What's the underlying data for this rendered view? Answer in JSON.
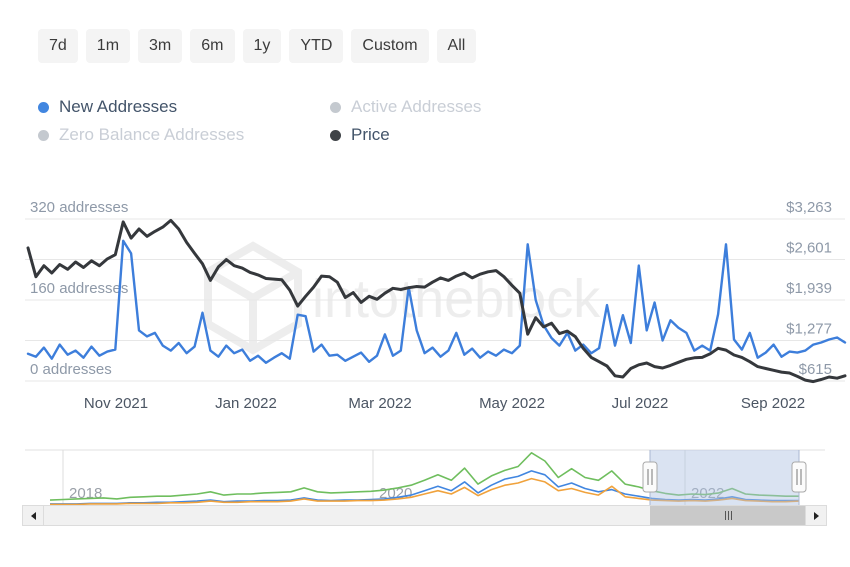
{
  "toolbar": {
    "ranges": [
      "7d",
      "1m",
      "3m",
      "6m",
      "1y",
      "YTD",
      "Custom",
      "All"
    ]
  },
  "legend": [
    {
      "label": "New Addresses",
      "color": "#4186e0",
      "active": true
    },
    {
      "label": "Active Addresses",
      "color": "#c4c9cf",
      "active": false
    },
    {
      "label": "Zero Balance Addresses",
      "color": "#c4c9cf",
      "active": false
    },
    {
      "label": "Price",
      "color": "#3f4347",
      "active": true
    }
  ],
  "watermark": {
    "text": "intotheblock",
    "color": "#ededed"
  },
  "colors": {
    "new_addresses": "#3d7edb",
    "price": "#35383c",
    "nav_green": "#6fbe5e",
    "nav_blue": "#4186e0",
    "nav_orange": "#f0a23c",
    "grid": "#e7e7e7",
    "axis_label": "#8e99a8",
    "x_label": "#4b5563",
    "selection_fill": "rgba(174,192,226,0.45)"
  },
  "chart_data": [
    {
      "name": "main",
      "type": "line",
      "x_start": "2021-09-21",
      "x_end": "2022-09-26",
      "x_ticks": [
        "Nov 2021",
        "Jan 2022",
        "Mar 2022",
        "May 2022",
        "Jul 2022",
        "Sep 2022"
      ],
      "left_axis": {
        "ticks": [
          "320 addresses",
          "160 addresses",
          "0 addresses"
        ],
        "range": [
          0,
          320
        ],
        "unit": "addresses"
      },
      "right_axis": {
        "ticks": [
          "$3,263",
          "$2,601",
          "$1,939",
          "$1,277",
          "$615"
        ],
        "range": [
          615,
          3263
        ],
        "unit": "USD"
      },
      "grid": true,
      "series": [
        {
          "name": "New Addresses",
          "axis": "left",
          "values": [
            54,
            48,
            66,
            44,
            72,
            52,
            60,
            46,
            68,
            50,
            58,
            62,
            277,
            252,
            100,
            88,
            95,
            70,
            60,
            75,
            55,
            68,
            135,
            60,
            48,
            70,
            55,
            62,
            40,
            50,
            36,
            46,
            55,
            44,
            131,
            128,
            58,
            72,
            50,
            52,
            40,
            48,
            56,
            38,
            50,
            92,
            50,
            60,
            185,
            100,
            55,
            66,
            48,
            60,
            95,
            52,
            64,
            46,
            58,
            50,
            62,
            55,
            70,
            270,
            160,
            110,
            85,
            70,
            95,
            60,
            72,
            55,
            65,
            150,
            70,
            130,
            75,
            228,
            100,
            155,
            80,
            120,
            105,
            95,
            60,
            70,
            60,
            132,
            270,
            82,
            62,
            95,
            46,
            56,
            72,
            48,
            58,
            56,
            60,
            72,
            76,
            82,
            86,
            76
          ]
        },
        {
          "name": "Price",
          "axis": "right",
          "values": [
            2790,
            2320,
            2500,
            2380,
            2520,
            2440,
            2560,
            2470,
            2580,
            2500,
            2610,
            2680,
            3215,
            2950,
            3100,
            2980,
            3060,
            3130,
            3240,
            3100,
            2880,
            2700,
            2530,
            2260,
            2480,
            2600,
            2500,
            2460,
            2390,
            2350,
            2290,
            2280,
            2270,
            2100,
            1840,
            2000,
            2150,
            2330,
            2320,
            2230,
            1980,
            2060,
            1900,
            2000,
            1950,
            2050,
            2130,
            2110,
            2140,
            2160,
            2150,
            2230,
            2300,
            2260,
            2330,
            2380,
            2300,
            2360,
            2400,
            2420,
            2320,
            2180,
            2050,
            1380,
            1650,
            1500,
            1560,
            1390,
            1430,
            1340,
            1150,
            1000,
            930,
            860,
            700,
            680,
            820,
            880,
            910,
            850,
            828,
            870,
            920,
            970,
            995,
            1000,
            1060,
            1150,
            1120,
            1040,
            1000,
            930,
            850,
            820,
            790,
            760,
            745,
            690,
            630,
            605,
            640,
            680,
            660,
            700
          ]
        }
      ]
    },
    {
      "name": "navigator",
      "type": "line",
      "x_start": "2017-06",
      "x_end": "2022-09",
      "x_ticks": [
        "2018",
        "2020",
        "2022"
      ],
      "y_range": [
        0,
        100
      ],
      "selection": {
        "from": "2021-09",
        "to": "2022-09"
      },
      "series": [
        {
          "name": "green",
          "values": [
            9,
            10,
            11,
            12,
            13,
            11,
            14,
            15,
            16,
            16,
            18,
            20,
            24,
            18,
            20,
            20,
            22,
            23,
            24,
            31,
            24,
            22,
            23,
            24,
            25,
            27,
            31,
            36,
            45,
            55,
            45,
            67,
            38,
            53,
            63,
            70,
            95,
            80,
            50,
            66,
            50,
            45,
            62,
            38,
            33,
            26,
            21,
            18,
            20,
            19,
            22,
            30,
            20,
            18,
            17,
            16,
            16
          ]
        },
        {
          "name": "blue",
          "values": [
            2,
            2,
            2,
            3,
            3,
            3,
            4,
            4,
            5,
            5,
            6,
            7,
            9,
            6,
            7,
            7,
            8,
            8,
            9,
            13,
            9,
            8,
            9,
            9,
            10,
            11,
            14,
            18,
            26,
            34,
            26,
            42,
            22,
            36,
            47,
            52,
            62,
            55,
            33,
            40,
            30,
            24,
            28,
            20,
            16,
            12,
            10,
            9,
            10,
            9,
            11,
            15,
            10,
            9,
            8,
            8,
            8
          ]
        },
        {
          "name": "orange",
          "values": [
            1,
            1,
            1,
            2,
            2,
            2,
            3,
            3,
            3,
            4,
            4,
            5,
            7,
            5,
            5,
            6,
            6,
            6,
            7,
            11,
            7,
            7,
            7,
            8,
            8,
            9,
            11,
            14,
            20,
            26,
            20,
            32,
            17,
            28,
            36,
            40,
            48,
            42,
            26,
            30,
            23,
            18,
            34,
            15,
            12,
            9,
            8,
            7,
            8,
            7,
            9,
            12,
            8,
            7,
            6,
            6,
            7
          ]
        }
      ]
    }
  ]
}
